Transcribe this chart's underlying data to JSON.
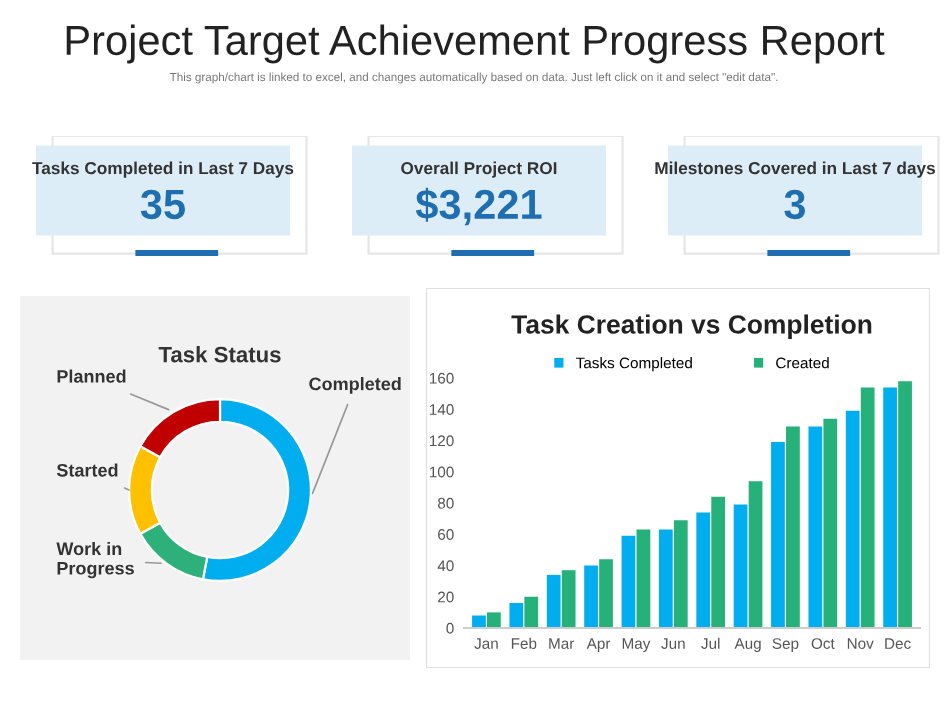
{
  "chart_data": [
    {
      "type": "other",
      "title": "Project Target Achievement Progress Report",
      "subtitle": "This graph/chart is linked to excel, and changes automatically based on data. Just left click on it and select \"edit data\".",
      "annotations": [
        "Tasks Completed in Last 7 Days",
        "35",
        "Overall Project ROI",
        "$3,221",
        "Milestones Covered in Last 7 days",
        "3"
      ]
    },
    {
      "type": "donut",
      "title": "Task Status",
      "categories": [
        "Completed",
        "Work in Progress",
        "Started",
        "Planned"
      ],
      "values": [
        53,
        14,
        16,
        17
      ],
      "colors": [
        "#00aeef",
        "#2eb07a",
        "#ffc000",
        "#c00000"
      ]
    },
    {
      "type": "bar",
      "title": "Task Creation vs Completion",
      "categories": [
        "Jan",
        "Feb",
        "Mar",
        "Apr",
        "May",
        "Jun",
        "Jul",
        "Aug",
        "Sep",
        "Oct",
        "Nov",
        "Dec"
      ],
      "series": [
        {
          "name": "Tasks Completed",
          "color": "#00aeef",
          "values": [
            8,
            16,
            34,
            40,
            59,
            63,
            74,
            79,
            119,
            129,
            139,
            154
          ]
        },
        {
          "name": "Created",
          "color": "#26b07a",
          "values": [
            10,
            20,
            37,
            44,
            63,
            69,
            84,
            94,
            129,
            134,
            154,
            158
          ]
        }
      ],
      "ylim": [
        0,
        160
      ],
      "yticks": [
        0,
        20,
        40,
        60,
        80,
        100,
        120,
        140,
        160
      ],
      "legend": "top",
      "grid": false
    }
  ]
}
